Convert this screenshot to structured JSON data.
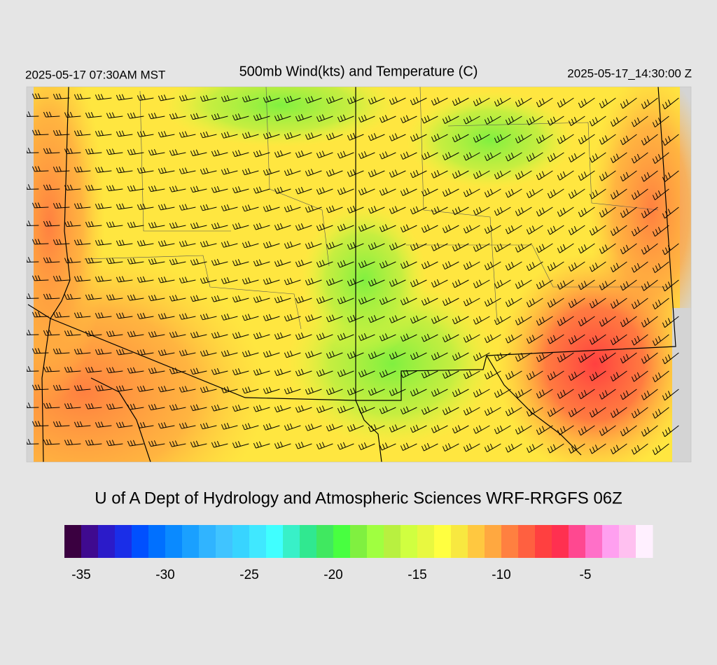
{
  "header": {
    "left_time": "2025-05-17 07:30AM MST",
    "title": "500mb Wind(kts) and Temperature (C)",
    "right_time": "2025-05-17_14:30:00 Z"
  },
  "credit": "U of A Dept of Hydrology and Atmospheric Sciences WRF-RRGFS 06Z",
  "colorbar": {
    "range": [
      -36,
      -1
    ],
    "colors": [
      "#3a0040",
      "#3f0a8f",
      "#2b1bc9",
      "#1a2ee8",
      "#0050ff",
      "#0070ff",
      "#0a8aff",
      "#1aa0ff",
      "#30b4ff",
      "#40c4ff",
      "#38d4ff",
      "#40e8ff",
      "#40ffff",
      "#38f0c8",
      "#30e890",
      "#40e860",
      "#48ff40",
      "#80f040",
      "#a0ff40",
      "#b8f040",
      "#d0ff40",
      "#e8f840",
      "#ffff40",
      "#f8e840",
      "#ffc840",
      "#ffa840",
      "#ff8040",
      "#ff6040",
      "#ff4040",
      "#ff3050",
      "#ff4890",
      "#ff70c8",
      "#ffa0f0",
      "#ffc0f0",
      "#fff0ff"
    ],
    "ticks": [
      -35,
      -30,
      -25,
      -20,
      -15,
      -10,
      -5
    ]
  }
}
